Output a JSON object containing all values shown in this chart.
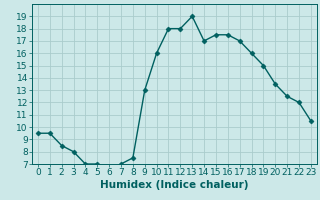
{
  "x": [
    0,
    1,
    2,
    3,
    4,
    5,
    6,
    7,
    8,
    9,
    10,
    11,
    12,
    13,
    14,
    15,
    16,
    17,
    18,
    19,
    20,
    21,
    22,
    23
  ],
  "y": [
    9.5,
    9.5,
    8.5,
    8.0,
    7.0,
    7.0,
    6.5,
    7.0,
    7.5,
    13.0,
    16.0,
    18.0,
    18.0,
    19.0,
    17.0,
    17.5,
    17.5,
    17.0,
    16.0,
    15.0,
    13.5,
    12.5,
    12.0,
    10.5
  ],
  "line_color": "#006060",
  "marker": "D",
  "marker_size": 2.5,
  "bg_color": "#cce8e8",
  "grid_color": "#aacccc",
  "xlabel": "Humidex (Indice chaleur)",
  "ylim": [
    7,
    20
  ],
  "xlim": [
    -0.5,
    23.5
  ],
  "yticks": [
    7,
    8,
    9,
    10,
    11,
    12,
    13,
    14,
    15,
    16,
    17,
    18,
    19
  ],
  "xticks": [
    0,
    1,
    2,
    3,
    4,
    5,
    6,
    7,
    8,
    9,
    10,
    11,
    12,
    13,
    14,
    15,
    16,
    17,
    18,
    19,
    20,
    21,
    22,
    23
  ],
  "xlabel_fontsize": 7.5,
  "tick_fontsize": 6.5
}
